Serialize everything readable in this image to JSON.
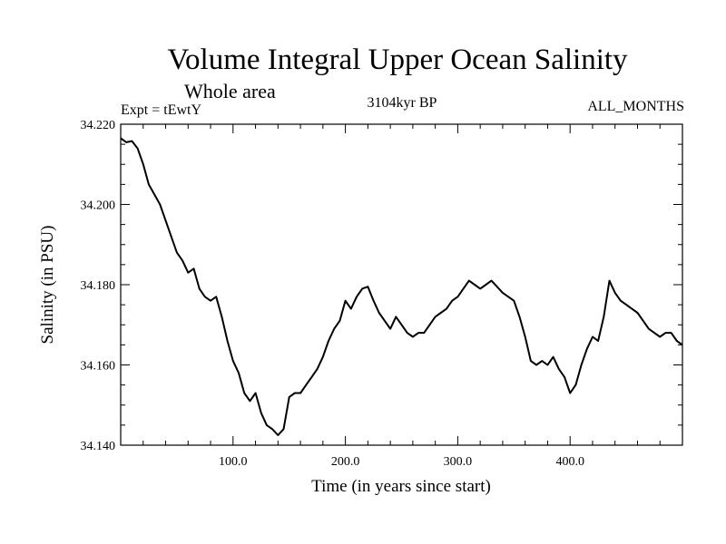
{
  "chart_data": {
    "type": "line",
    "title": "Volume Integral Upper Ocean Salinity",
    "subtitle": "Whole area",
    "experiment": "Expt = tEwtY",
    "epoch": "3104kyr BP",
    "season": "ALL_MONTHS",
    "xlabel": "Time (in years since start)",
    "ylabel": "Salinity (in PSU)",
    "xlim": [
      0,
      500
    ],
    "ylim": [
      34.14,
      34.22
    ],
    "xticks": [
      100,
      200,
      300,
      400
    ],
    "xtick_labels": [
      "100.0",
      "200.0",
      "300.0",
      "400.0"
    ],
    "yticks": [
      34.14,
      34.16,
      34.18,
      34.2,
      34.22
    ],
    "ytick_labels": [
      "34.140",
      "34.160",
      "34.180",
      "34.200",
      "34.220"
    ],
    "series": [
      {
        "name": "Salinity",
        "x": [
          0,
          5,
          10,
          15,
          20,
          25,
          30,
          35,
          40,
          45,
          50,
          55,
          60,
          65,
          70,
          75,
          80,
          85,
          90,
          95,
          100,
          105,
          110,
          115,
          120,
          125,
          130,
          135,
          140,
          145,
          150,
          155,
          160,
          165,
          170,
          175,
          180,
          185,
          190,
          195,
          200,
          205,
          210,
          215,
          220,
          225,
          230,
          235,
          240,
          245,
          250,
          255,
          260,
          265,
          270,
          275,
          280,
          285,
          290,
          295,
          300,
          305,
          310,
          315,
          320,
          325,
          330,
          335,
          340,
          345,
          350,
          355,
          360,
          365,
          370,
          375,
          380,
          385,
          390,
          395,
          400,
          405,
          410,
          415,
          420,
          425,
          430,
          435,
          440,
          445,
          450,
          455,
          460,
          465,
          470,
          475,
          480,
          485,
          490,
          495,
          500
        ],
        "values": [
          34.2165,
          34.2155,
          34.2158,
          34.214,
          34.21,
          34.205,
          34.2025,
          34.2,
          34.196,
          34.192,
          34.188,
          34.186,
          34.183,
          34.184,
          34.179,
          34.177,
          34.176,
          34.177,
          34.172,
          34.166,
          34.161,
          34.158,
          34.153,
          34.151,
          34.153,
          34.148,
          34.145,
          34.144,
          34.1425,
          34.144,
          34.152,
          34.153,
          34.153,
          34.155,
          34.157,
          34.159,
          34.162,
          34.166,
          34.169,
          34.171,
          34.176,
          34.174,
          34.177,
          34.179,
          34.1795,
          34.176,
          34.173,
          34.171,
          34.169,
          34.172,
          34.17,
          34.168,
          34.167,
          34.168,
          34.168,
          34.17,
          34.172,
          34.173,
          34.174,
          34.176,
          34.177,
          34.179,
          34.181,
          34.18,
          34.179,
          34.18,
          34.181,
          34.1795,
          34.178,
          34.177,
          34.176,
          34.172,
          34.167,
          34.161,
          34.16,
          34.161,
          34.16,
          34.162,
          34.159,
          34.157,
          34.153,
          34.155,
          34.16,
          34.164,
          34.167,
          34.166,
          34.172,
          34.181,
          34.178,
          34.176,
          34.175,
          34.174,
          34.173,
          34.171,
          34.169,
          34.168,
          34.167,
          34.168,
          34.168,
          34.166,
          34.165
        ]
      }
    ]
  }
}
